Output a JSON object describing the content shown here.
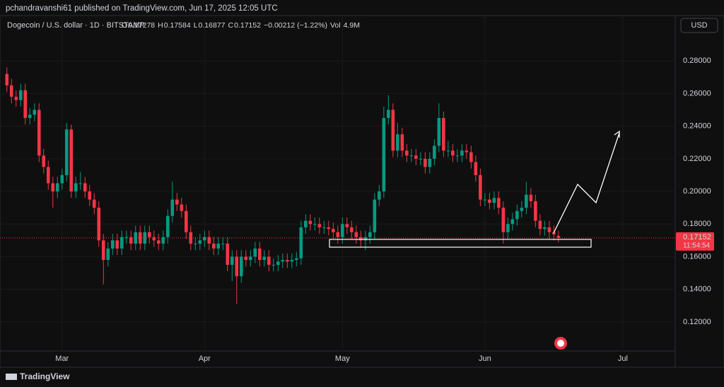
{
  "header": {
    "published": "pchandravanshi61 published on TradingView.com, Jun 17, 2025 12:05 UTC"
  },
  "footer": {
    "brand": "TradingView"
  },
  "currency": "USD",
  "chart_data": {
    "type": "candlestick",
    "title": "Dogecoin / U.S. dollar · 1D · BITSTAMP",
    "legend": {
      "o": "O",
      "h": "H",
      "l": "L",
      "c": "C",
      "change": "−0.00212 (−1.22%)",
      "vol_label": "Vol",
      "vol": "4.9M"
    },
    "countdown": "11:54:54",
    "up_color": "#089981",
    "down_color": "#f23645",
    "open": [
      0.272,
      0.265,
      0.258,
      0.256,
      0.262,
      0.245,
      0.247,
      0.25,
      0.222,
      0.215,
      0.205,
      0.2,
      0.205,
      0.21,
      0.238,
      0.2,
      0.205,
      0.205,
      0.2,
      0.195,
      0.19,
      0.17,
      0.158,
      0.165,
      0.17,
      0.165,
      0.172,
      0.172,
      0.168,
      0.175,
      0.168,
      0.175,
      0.172,
      0.17,
      0.168,
      0.172,
      0.185,
      0.195,
      0.192,
      0.188,
      0.175,
      0.168,
      0.168,
      0.17,
      0.172,
      0.168,
      0.165,
      0.168,
      0.168,
      0.155,
      0.16,
      0.148,
      0.16,
      0.158,
      0.16,
      0.165,
      0.158,
      0.16,
      0.155,
      0.155,
      0.157,
      0.158,
      0.157,
      0.158,
      0.159,
      0.178,
      0.182,
      0.18,
      0.18,
      0.178,
      0.178,
      0.177,
      0.175,
      0.172,
      0.18,
      0.178,
      0.175,
      0.172,
      0.17,
      0.172,
      0.175,
      0.195,
      0.2,
      0.245,
      0.25,
      0.225,
      0.235,
      0.225,
      0.222,
      0.222,
      0.22,
      0.22,
      0.215,
      0.22,
      0.228,
      0.245,
      0.225,
      0.225,
      0.222,
      0.222,
      0.225,
      0.224,
      0.218,
      0.21,
      0.195,
      0.195,
      0.193,
      0.196,
      0.19,
      0.175,
      0.18,
      0.183,
      0.188,
      0.19,
      0.198,
      0.194,
      0.182,
      0.177,
      0.178,
      0.175,
      0.17278
    ],
    "high": [
      0.276,
      0.269,
      0.262,
      0.266,
      0.266,
      0.251,
      0.254,
      0.254,
      0.226,
      0.219,
      0.209,
      0.209,
      0.214,
      0.242,
      0.241,
      0.209,
      0.212,
      0.209,
      0.204,
      0.199,
      0.194,
      0.174,
      0.169,
      0.174,
      0.174,
      0.176,
      0.176,
      0.176,
      0.179,
      0.179,
      0.179,
      0.179,
      0.176,
      0.174,
      0.176,
      0.189,
      0.206,
      0.199,
      0.196,
      0.192,
      0.179,
      0.172,
      0.174,
      0.176,
      0.176,
      0.172,
      0.172,
      0.172,
      0.172,
      0.164,
      0.164,
      0.164,
      0.164,
      0.164,
      0.169,
      0.169,
      0.164,
      0.164,
      0.159,
      0.161,
      0.162,
      0.162,
      0.162,
      0.163,
      0.182,
      0.186,
      0.186,
      0.184,
      0.184,
      0.182,
      0.182,
      0.181,
      0.179,
      0.184,
      0.184,
      0.182,
      0.179,
      0.176,
      0.176,
      0.179,
      0.199,
      0.204,
      0.252,
      0.259,
      0.254,
      0.242,
      0.239,
      0.229,
      0.226,
      0.226,
      0.224,
      0.224,
      0.224,
      0.232,
      0.254,
      0.249,
      0.231,
      0.229,
      0.226,
      0.229,
      0.229,
      0.228,
      0.222,
      0.214,
      0.199,
      0.199,
      0.2,
      0.2,
      0.194,
      0.184,
      0.187,
      0.192,
      0.194,
      0.206,
      0.202,
      0.198,
      0.186,
      0.182,
      0.182,
      0.179,
      0.17584
    ],
    "low": [
      0.261,
      0.254,
      0.252,
      0.252,
      0.241,
      0.241,
      0.243,
      0.218,
      0.211,
      0.201,
      0.19,
      0.196,
      0.201,
      0.206,
      0.196,
      0.196,
      0.201,
      0.196,
      0.191,
      0.186,
      0.166,
      0.143,
      0.154,
      0.161,
      0.161,
      0.161,
      0.168,
      0.164,
      0.164,
      0.164,
      0.164,
      0.168,
      0.166,
      0.164,
      0.164,
      0.168,
      0.181,
      0.188,
      0.184,
      0.171,
      0.164,
      0.164,
      0.164,
      0.166,
      0.164,
      0.161,
      0.161,
      0.164,
      0.151,
      0.145,
      0.131,
      0.144,
      0.154,
      0.154,
      0.156,
      0.154,
      0.154,
      0.151,
      0.151,
      0.151,
      0.153,
      0.153,
      0.153,
      0.154,
      0.155,
      0.174,
      0.176,
      0.176,
      0.174,
      0.174,
      0.173,
      0.171,
      0.168,
      0.168,
      0.174,
      0.171,
      0.168,
      0.166,
      0.164,
      0.168,
      0.171,
      0.191,
      0.196,
      0.241,
      0.221,
      0.221,
      0.221,
      0.218,
      0.218,
      0.216,
      0.216,
      0.211,
      0.211,
      0.216,
      0.224,
      0.221,
      0.221,
      0.218,
      0.218,
      0.218,
      0.22,
      0.214,
      0.206,
      0.191,
      0.191,
      0.189,
      0.189,
      0.186,
      0.168,
      0.171,
      0.176,
      0.179,
      0.184,
      0.186,
      0.19,
      0.178,
      0.173,
      0.173,
      0.171,
      0.17,
      0.16877
    ],
    "close": [
      0.265,
      0.258,
      0.256,
      0.262,
      0.245,
      0.247,
      0.25,
      0.222,
      0.215,
      0.205,
      0.2,
      0.205,
      0.21,
      0.238,
      0.2,
      0.205,
      0.205,
      0.2,
      0.195,
      0.19,
      0.17,
      0.158,
      0.165,
      0.17,
      0.165,
      0.172,
      0.172,
      0.168,
      0.175,
      0.168,
      0.175,
      0.172,
      0.17,
      0.168,
      0.172,
      0.185,
      0.195,
      0.192,
      0.188,
      0.175,
      0.168,
      0.168,
      0.17,
      0.172,
      0.168,
      0.165,
      0.168,
      0.168,
      0.155,
      0.16,
      0.148,
      0.16,
      0.158,
      0.16,
      0.165,
      0.158,
      0.16,
      0.155,
      0.155,
      0.157,
      0.158,
      0.157,
      0.158,
      0.159,
      0.178,
      0.182,
      0.18,
      0.18,
      0.178,
      0.178,
      0.177,
      0.175,
      0.172,
      0.18,
      0.178,
      0.175,
      0.172,
      0.17,
      0.172,
      0.175,
      0.195,
      0.2,
      0.245,
      0.25,
      0.225,
      0.235,
      0.225,
      0.222,
      0.222,
      0.22,
      0.22,
      0.215,
      0.22,
      0.228,
      0.245,
      0.225,
      0.225,
      0.222,
      0.222,
      0.225,
      0.224,
      0.218,
      0.21,
      0.195,
      0.195,
      0.193,
      0.196,
      0.19,
      0.175,
      0.18,
      0.183,
      0.188,
      0.19,
      0.198,
      0.194,
      0.182,
      0.177,
      0.178,
      0.175,
      0.17364,
      0.17152
    ],
    "xlim": [
      -1.5,
      145.4
    ],
    "xticks": [
      {
        "value": 12,
        "label": "Mar"
      },
      {
        "value": 43,
        "label": "Apr"
      },
      {
        "value": 73,
        "label": "May"
      },
      {
        "value": 104,
        "label": "Jun"
      },
      {
        "value": 134,
        "label": "Jul"
      }
    ],
    "ylim": [
      0.1022,
      0.3078
    ],
    "yticks": [
      {
        "value": 0.12,
        "label": "0.12000"
      },
      {
        "value": 0.14,
        "label": "0.14000"
      },
      {
        "value": 0.16,
        "label": "0.16000"
      },
      {
        "value": 0.18,
        "label": "0.18000"
      },
      {
        "value": 0.2,
        "label": "0.20000"
      },
      {
        "value": 0.22,
        "label": "0.22000"
      },
      {
        "value": 0.24,
        "label": "0.24000"
      },
      {
        "value": 0.26,
        "label": "0.26000"
      },
      {
        "value": 0.28,
        "label": "0.28000"
      }
    ]
  }
}
